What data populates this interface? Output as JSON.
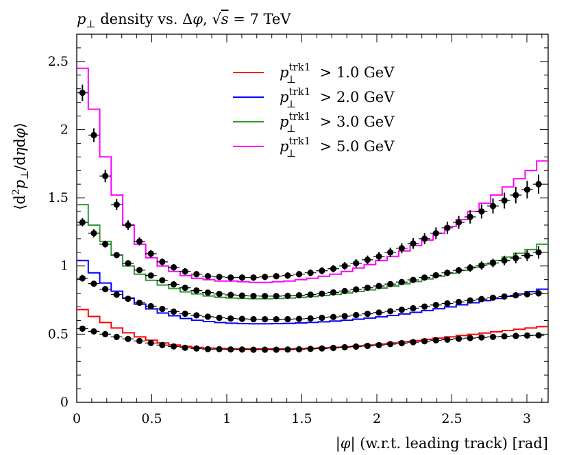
{
  "chart_data": {
    "type": "line",
    "title": "p⊥ density vs. Δφ, √s = 7 TeV",
    "title_parts": {
      "p": "p",
      "perp": "⊥",
      "mid": " density vs. Δ",
      "phi": "φ",
      "comma": ", ",
      "sqrt": "√",
      "s": "s",
      "eq": " = 7 TeV"
    },
    "xlabel": "|φ| (w.r.t. leading track) [rad]",
    "xlabel_parts": {
      "open": "|",
      "phi": "φ",
      "rest": "| (w.r.t. leading track) [rad]"
    },
    "ylabel": "⟨d²p⊥/dηdφ⟩",
    "ylabel_parts": {
      "open": "⟨d",
      "two": "2",
      "p": "p",
      "perp": "⊥",
      "slash": "/d",
      "eta": "η",
      "d": "d",
      "phi": "φ",
      "close": "⟩"
    },
    "xlim": [
      0,
      3.14159
    ],
    "ylim": [
      0,
      2.7
    ],
    "xticks": [
      0,
      0.5,
      1,
      1.5,
      2,
      2.5,
      3
    ],
    "xtick_labels": [
      "0",
      "0.5",
      "1",
      "1.5",
      "2",
      "2.5",
      "3"
    ],
    "yticks": [
      0,
      0.5,
      1,
      1.5,
      2,
      2.5
    ],
    "ytick_labels": [
      "0",
      "0.5",
      "1",
      "1.5",
      "2",
      "2.5"
    ],
    "grid": false,
    "legend_position": "top-center",
    "x": [
      0.038,
      0.114,
      0.19,
      0.266,
      0.342,
      0.418,
      0.494,
      0.57,
      0.646,
      0.722,
      0.798,
      0.874,
      0.95,
      1.026,
      1.102,
      1.178,
      1.254,
      1.33,
      1.406,
      1.482,
      1.558,
      1.634,
      1.71,
      1.786,
      1.862,
      1.938,
      2.014,
      2.09,
      2.166,
      2.242,
      2.318,
      2.394,
      2.47,
      2.546,
      2.622,
      2.698,
      2.774,
      2.85,
      2.926,
      3.002,
      3.078
    ],
    "series": [
      {
        "name": "p⊥trk1 > 1.0 GeV",
        "legend_parts": {
          "p": "p",
          "sup": "trk1",
          "sub": "⊥",
          "rest": " > 1.0 GeV"
        },
        "color": "#ff0000",
        "mc": [
          0.68,
          0.63,
          0.585,
          0.545,
          0.51,
          0.48,
          0.455,
          0.435,
          0.42,
          0.41,
          0.403,
          0.398,
          0.395,
          0.393,
          0.392,
          0.392,
          0.392,
          0.392,
          0.393,
          0.395,
          0.397,
          0.4,
          0.404,
          0.409,
          0.414,
          0.42,
          0.427,
          0.435,
          0.444,
          0.453,
          0.462,
          0.471,
          0.48,
          0.49,
          0.499,
          0.508,
          0.517,
          0.527,
          0.536,
          0.545,
          0.555
        ],
        "data": [
          0.54,
          0.52,
          0.5,
          0.48,
          0.465,
          0.45,
          0.435,
          0.42,
          0.41,
          0.4,
          0.395,
          0.39,
          0.39,
          0.388,
          0.387,
          0.386,
          0.386,
          0.386,
          0.387,
          0.389,
          0.392,
          0.395,
          0.399,
          0.404,
          0.409,
          0.414,
          0.42,
          0.427,
          0.434,
          0.441,
          0.448,
          0.455,
          0.46,
          0.466,
          0.471,
          0.476,
          0.48,
          0.484,
          0.487,
          0.49,
          0.492
        ],
        "err": [
          0.02,
          0.015,
          0.012,
          0.01,
          0.01,
          0.01,
          0.01,
          0.01,
          0.01,
          0.01,
          0.01,
          0.01,
          0.01,
          0.01,
          0.01,
          0.01,
          0.01,
          0.01,
          0.01,
          0.01,
          0.01,
          0.01,
          0.01,
          0.01,
          0.01,
          0.01,
          0.01,
          0.01,
          0.01,
          0.01,
          0.01,
          0.01,
          0.01,
          0.01,
          0.01,
          0.01,
          0.01,
          0.01,
          0.01,
          0.01,
          0.012
        ]
      },
      {
        "name": "p⊥trk1 > 2.0 GeV",
        "legend_parts": {
          "p": "p",
          "sup": "trk1",
          "sub": "⊥",
          "rest": " > 2.0 GeV"
        },
        "color": "#0000ff",
        "mc": [
          1.04,
          0.95,
          0.875,
          0.815,
          0.765,
          0.72,
          0.685,
          0.655,
          0.635,
          0.615,
          0.602,
          0.592,
          0.585,
          0.58,
          0.577,
          0.576,
          0.576,
          0.577,
          0.579,
          0.582,
          0.586,
          0.59,
          0.596,
          0.602,
          0.61,
          0.618,
          0.627,
          0.637,
          0.648,
          0.66,
          0.673,
          0.686,
          0.7,
          0.715,
          0.73,
          0.746,
          0.762,
          0.778,
          0.795,
          0.812,
          0.83
        ],
        "data": [
          0.91,
          0.87,
          0.83,
          0.79,
          0.76,
          0.73,
          0.705,
          0.685,
          0.665,
          0.65,
          0.638,
          0.628,
          0.62,
          0.615,
          0.612,
          0.61,
          0.609,
          0.609,
          0.61,
          0.612,
          0.615,
          0.62,
          0.626,
          0.632,
          0.64,
          0.649,
          0.658,
          0.668,
          0.679,
          0.69,
          0.702,
          0.714,
          0.725,
          0.736,
          0.747,
          0.757,
          0.767,
          0.776,
          0.785,
          0.793,
          0.8
        ],
        "err": [
          0.025,
          0.02,
          0.018,
          0.015,
          0.012,
          0.012,
          0.012,
          0.012,
          0.012,
          0.012,
          0.012,
          0.012,
          0.012,
          0.012,
          0.012,
          0.012,
          0.012,
          0.012,
          0.012,
          0.012,
          0.012,
          0.012,
          0.012,
          0.012,
          0.012,
          0.012,
          0.012,
          0.012,
          0.012,
          0.012,
          0.012,
          0.012,
          0.014,
          0.014,
          0.015,
          0.016,
          0.017,
          0.018,
          0.02,
          0.022,
          0.025
        ]
      },
      {
        "name": "p⊥trk1 > 3.0 GeV",
        "legend_parts": {
          "p": "p",
          "sup": "trk1",
          "sub": "⊥",
          "rest": " > 3.0 GeV"
        },
        "color": "#339933",
        "mc": [
          1.45,
          1.3,
          1.18,
          1.08,
          1.0,
          0.94,
          0.895,
          0.86,
          0.835,
          0.81,
          0.795,
          0.78,
          0.77,
          0.765,
          0.762,
          0.76,
          0.76,
          0.762,
          0.765,
          0.77,
          0.776,
          0.783,
          0.792,
          0.802,
          0.813,
          0.825,
          0.838,
          0.853,
          0.869,
          0.886,
          0.905,
          0.925,
          0.946,
          0.968,
          0.991,
          1.015,
          1.04,
          1.066,
          1.093,
          1.12,
          1.16
        ],
        "data": [
          1.32,
          1.24,
          1.16,
          1.08,
          1.02,
          0.97,
          0.93,
          0.895,
          0.865,
          0.84,
          0.82,
          0.805,
          0.795,
          0.788,
          0.783,
          0.78,
          0.779,
          0.779,
          0.781,
          0.785,
          0.79,
          0.797,
          0.806,
          0.816,
          0.828,
          0.84,
          0.853,
          0.867,
          0.882,
          0.898,
          0.915,
          0.932,
          0.95,
          0.968,
          0.986,
          1.004,
          1.022,
          1.04,
          1.058,
          1.076,
          1.1
        ],
        "err": [
          0.03,
          0.03,
          0.025,
          0.022,
          0.02,
          0.018,
          0.016,
          0.016,
          0.015,
          0.015,
          0.015,
          0.015,
          0.015,
          0.015,
          0.015,
          0.015,
          0.015,
          0.015,
          0.015,
          0.015,
          0.015,
          0.015,
          0.015,
          0.015,
          0.015,
          0.015,
          0.015,
          0.016,
          0.017,
          0.018,
          0.02,
          0.022,
          0.024,
          0.026,
          0.028,
          0.03,
          0.032,
          0.035,
          0.038,
          0.04,
          0.045
        ]
      },
      {
        "name": "p⊥trk1 > 5.0 GeV",
        "legend_parts": {
          "p": "p",
          "sup": "trk1",
          "sub": "⊥",
          "rest": " > 5.0 GeV"
        },
        "color": "#ff00ff",
        "mc": [
          2.45,
          2.15,
          1.8,
          1.52,
          1.3,
          1.16,
          1.06,
          1.0,
          0.96,
          0.93,
          0.91,
          0.9,
          0.89,
          0.89,
          0.885,
          0.88,
          0.88,
          0.885,
          0.89,
          0.9,
          0.91,
          0.925,
          0.94,
          0.96,
          0.985,
          1.01,
          1.04,
          1.07,
          1.11,
          1.15,
          1.19,
          1.24,
          1.29,
          1.34,
          1.4,
          1.46,
          1.52,
          1.58,
          1.64,
          1.7,
          1.77
        ],
        "data": [
          2.27,
          1.96,
          1.66,
          1.45,
          1.3,
          1.18,
          1.09,
          1.03,
          0.99,
          0.96,
          0.94,
          0.925,
          0.92,
          0.915,
          0.915,
          0.915,
          0.92,
          0.925,
          0.93,
          0.94,
          0.95,
          0.965,
          0.98,
          1.0,
          1.02,
          1.045,
          1.07,
          1.1,
          1.13,
          1.165,
          1.2,
          1.24,
          1.28,
          1.32,
          1.36,
          1.4,
          1.44,
          1.48,
          1.52,
          1.56,
          1.6
        ],
        "err": [
          0.06,
          0.05,
          0.045,
          0.04,
          0.035,
          0.03,
          0.028,
          0.026,
          0.025,
          0.024,
          0.023,
          0.023,
          0.023,
          0.023,
          0.023,
          0.023,
          0.023,
          0.023,
          0.024,
          0.024,
          0.025,
          0.026,
          0.027,
          0.028,
          0.03,
          0.031,
          0.033,
          0.035,
          0.037,
          0.039,
          0.041,
          0.043,
          0.045,
          0.047,
          0.049,
          0.052,
          0.055,
          0.058,
          0.061,
          0.065,
          0.07
        ]
      }
    ]
  }
}
